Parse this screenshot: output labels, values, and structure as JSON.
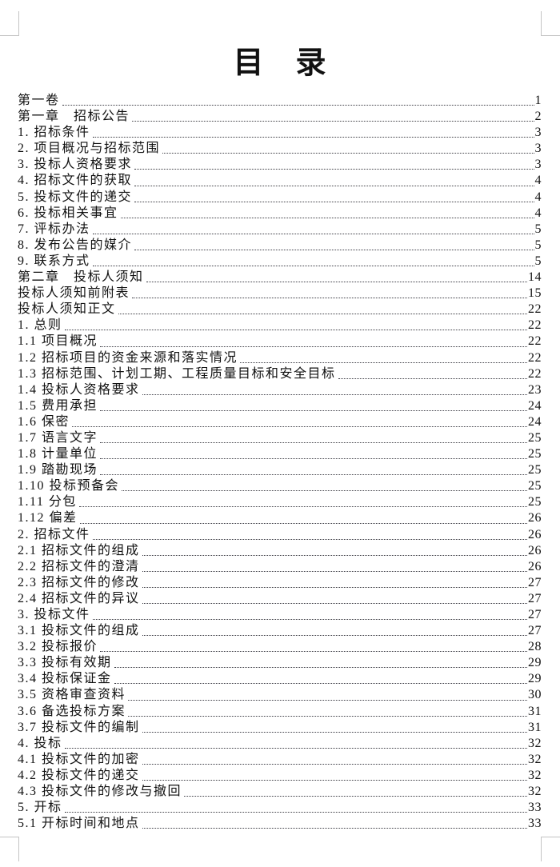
{
  "colors": {
    "text": "#111111",
    "leader": "#3a3a42",
    "crop_mark": "#c4c4c4",
    "page_bg": "#ffffff"
  },
  "doc": {
    "title": "目　录",
    "toc": {
      "entries": [
        {
          "label": "第一卷",
          "page": "1"
        },
        {
          "label": "第一章　招标公告",
          "page": "2"
        },
        {
          "label": "1. 招标条件",
          "page": "3"
        },
        {
          "label": "2. 项目概况与招标范围",
          "page": "3"
        },
        {
          "label": "3. 投标人资格要求",
          "page": "3"
        },
        {
          "label": "4. 招标文件的获取",
          "page": "4"
        },
        {
          "label": "5. 投标文件的递交",
          "page": "4"
        },
        {
          "label": "6. 投标相关事宜",
          "page": "4"
        },
        {
          "label": "7. 评标办法",
          "page": "5"
        },
        {
          "label": "8. 发布公告的媒介",
          "page": "5"
        },
        {
          "label": "9. 联系方式",
          "page": "5"
        },
        {
          "label": "第二章　投标人须知",
          "page": "14"
        },
        {
          "label": "投标人须知前附表",
          "page": "15"
        },
        {
          "label": "投标人须知正文",
          "page": "22"
        },
        {
          "label": "1. 总则",
          "page": "22"
        },
        {
          "label": "1.1 项目概况",
          "page": "22"
        },
        {
          "label": "1.2 招标项目的资金来源和落实情况",
          "page": "22"
        },
        {
          "label": "1.3 招标范围、计划工期、工程质量目标和安全目标",
          "page": "22"
        },
        {
          "label": "1.4 投标人资格要求",
          "page": "23"
        },
        {
          "label": "1.5 费用承担",
          "page": "24"
        },
        {
          "label": "1.6 保密",
          "page": "24"
        },
        {
          "label": "1.7 语言文字",
          "page": "25"
        },
        {
          "label": "1.8 计量单位",
          "page": "25"
        },
        {
          "label": "1.9 踏勘现场",
          "page": "25"
        },
        {
          "label": "1.10 投标预备会",
          "page": "25"
        },
        {
          "label": "1.11 分包",
          "page": "25"
        },
        {
          "label": "1.12 偏差",
          "page": "26"
        },
        {
          "label": "2. 招标文件",
          "page": "26"
        },
        {
          "label": "2.1 招标文件的组成",
          "page": "26"
        },
        {
          "label": "2.2 招标文件的澄清",
          "page": "26"
        },
        {
          "label": "2.3 招标文件的修改",
          "page": "27"
        },
        {
          "label": "2.4 招标文件的异议",
          "page": "27"
        },
        {
          "label": "3. 投标文件",
          "page": "27"
        },
        {
          "label": "3.1 投标文件的组成",
          "page": "27"
        },
        {
          "label": "3.2 投标报价",
          "page": "28"
        },
        {
          "label": "3.3 投标有效期",
          "page": "29"
        },
        {
          "label": "3.4 投标保证金",
          "page": "29"
        },
        {
          "label": "3.5 资格审查资料",
          "page": "30"
        },
        {
          "label": "3.6 备选投标方案",
          "page": "31"
        },
        {
          "label": "3.7 投标文件的编制",
          "page": "31"
        },
        {
          "label": "4. 投标",
          "page": "32"
        },
        {
          "label": "4.1 投标文件的加密",
          "page": "32"
        },
        {
          "label": "4.2 投标文件的递交",
          "page": "32"
        },
        {
          "label": "4.3 投标文件的修改与撤回",
          "page": "32"
        },
        {
          "label": "5. 开标",
          "page": "33"
        },
        {
          "label": "5.1 开标时间和地点",
          "page": "33"
        }
      ]
    }
  }
}
